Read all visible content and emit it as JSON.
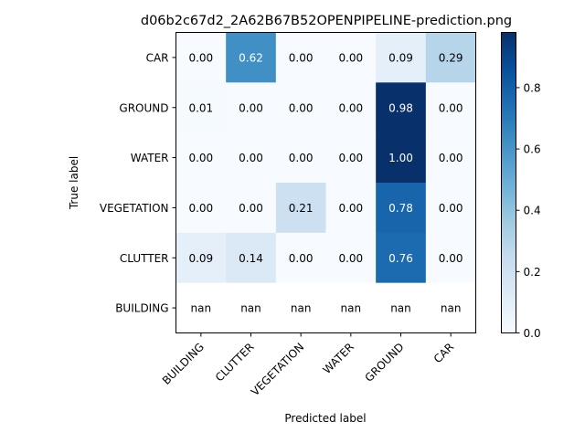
{
  "chart_data": {
    "type": "heatmap",
    "title": "d06b2c67d2_2A62B67B52OPENPIPELINE-prediction.png",
    "xlabel": "Predicted label",
    "ylabel": "True label",
    "x_categories": [
      "BUILDING",
      "CLUTTER",
      "VEGETATION",
      "WATER",
      "GROUND",
      "CAR"
    ],
    "y_categories": [
      "CAR",
      "GROUND",
      "WATER",
      "VEGETATION",
      "CLUTTER",
      "BUILDING"
    ],
    "values": [
      [
        0.0,
        0.62,
        0.0,
        0.0,
        0.09,
        0.29
      ],
      [
        0.01,
        0.0,
        0.0,
        0.0,
        0.98,
        0.0
      ],
      [
        0.0,
        0.0,
        0.0,
        0.0,
        1.0,
        0.0
      ],
      [
        0.0,
        0.0,
        0.21,
        0.0,
        0.78,
        0.0
      ],
      [
        0.09,
        0.14,
        0.0,
        0.0,
        0.76,
        0.0
      ],
      [
        null,
        null,
        null,
        null,
        null,
        null
      ]
    ],
    "cell_labels": [
      [
        "0.00",
        "0.62",
        "0.00",
        "0.00",
        "0.09",
        "0.29"
      ],
      [
        "0.01",
        "0.00",
        "0.00",
        "0.00",
        "0.98",
        "0.00"
      ],
      [
        "0.00",
        "0.00",
        "0.00",
        "0.00",
        "1.00",
        "0.00"
      ],
      [
        "0.00",
        "0.00",
        "0.21",
        "0.00",
        "0.78",
        "0.00"
      ],
      [
        "0.09",
        "0.14",
        "0.00",
        "0.00",
        "0.76",
        "0.00"
      ],
      [
        "nan",
        "nan",
        "nan",
        "nan",
        "nan",
        "nan"
      ]
    ],
    "colormap": "Blues",
    "color_range": [
      0,
      0.98
    ],
    "colorbar_ticks": [
      "0.0",
      "0.2",
      "0.4",
      "0.6",
      "0.8"
    ],
    "colorbar_tick_values": [
      0.0,
      0.2,
      0.4,
      0.6,
      0.8
    ],
    "grid": false
  }
}
